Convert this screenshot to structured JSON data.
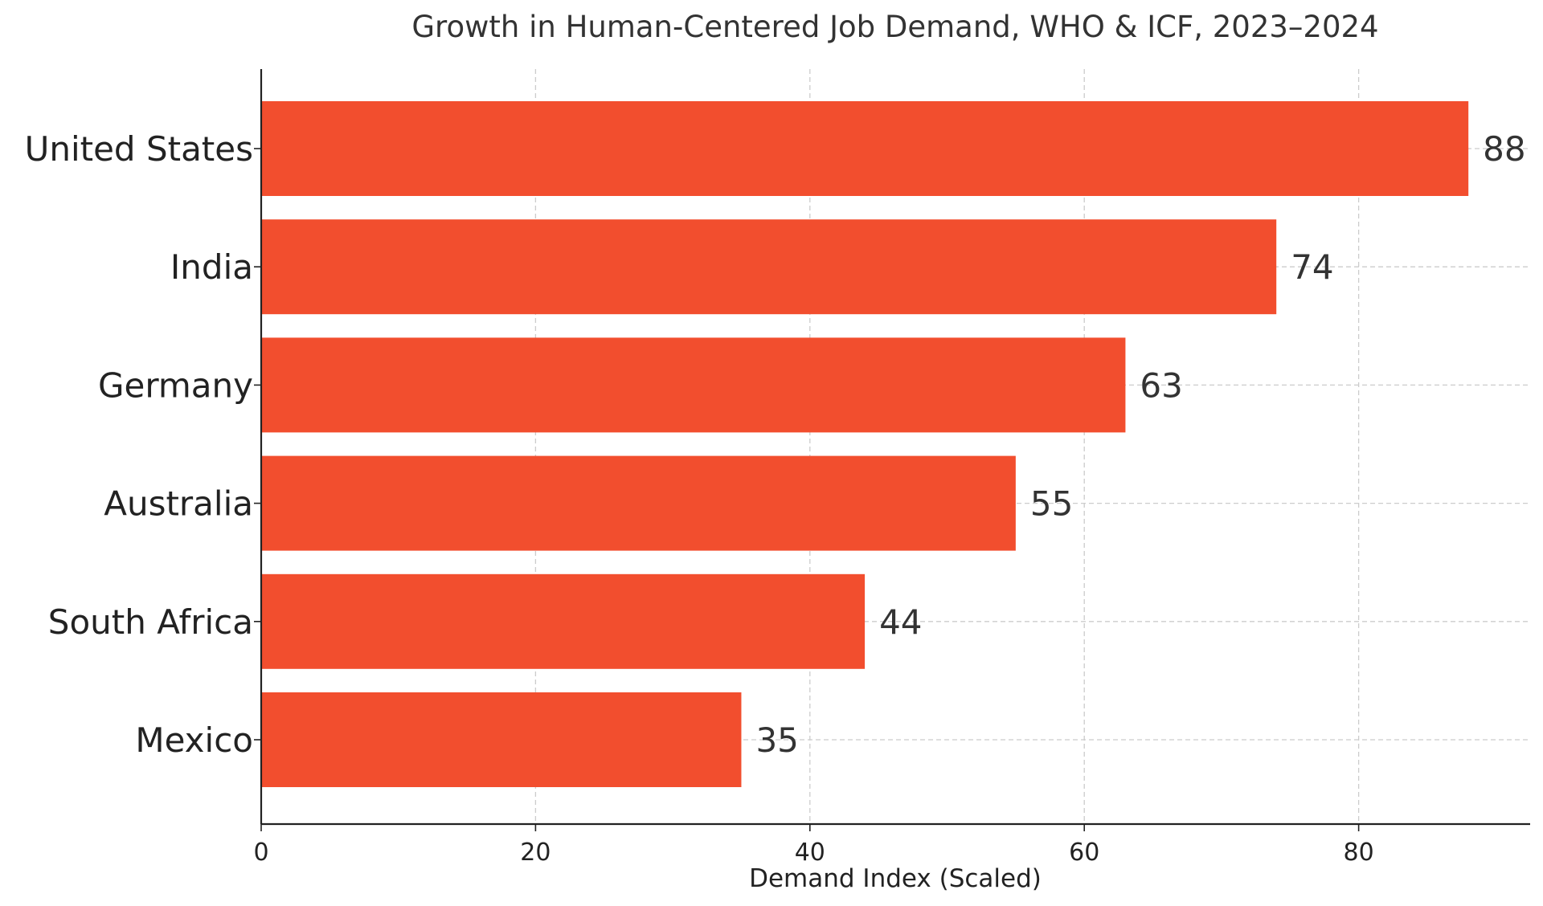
{
  "chart_data": {
    "type": "bar",
    "orientation": "horizontal",
    "title": "Growth in Human-Centered Job Demand, WHO & ICF, 2023–2024",
    "xlabel": "Demand Index (Scaled)",
    "ylabel": "",
    "categories": [
      "United States",
      "India",
      "Germany",
      "Australia",
      "South Africa",
      "Mexico"
    ],
    "values": [
      88,
      74,
      63,
      55,
      44,
      35
    ],
    "value_labels": [
      "88",
      "74",
      "63",
      "55",
      "44",
      "35"
    ],
    "xlim": [
      0,
      92.5
    ],
    "xticks": [
      0,
      20,
      40,
      60,
      80
    ],
    "xtick_labels": [
      "0",
      "20",
      "40",
      "60",
      "80"
    ],
    "grid": true,
    "bar_color": "#f24e2e"
  }
}
